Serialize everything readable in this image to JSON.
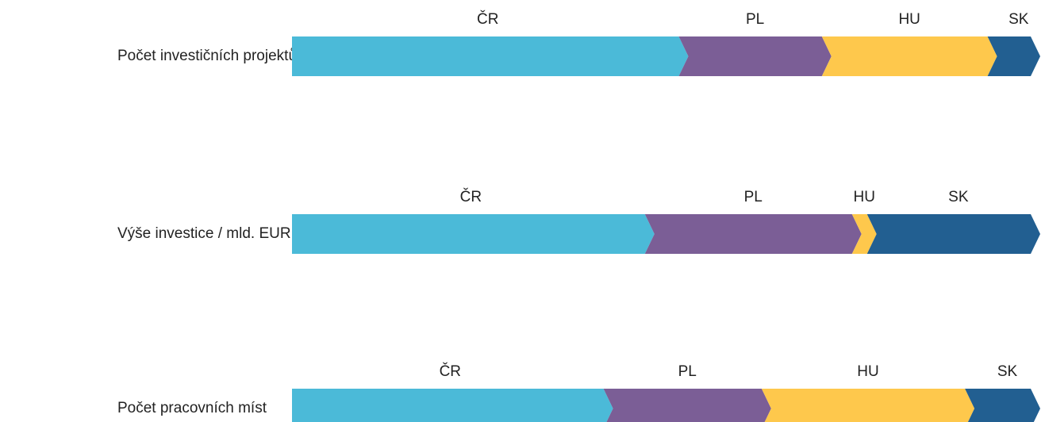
{
  "chart_data": {
    "type": "bar",
    "stacked": true,
    "orientation": "horizontal",
    "categories": [
      "Počet investičních projektů",
      "Výše investice / mld. EUR",
      "Počet pracovních míst"
    ],
    "series": [
      {
        "name": "ČR",
        "color": "#4bbad8",
        "values": [
          52,
          47.5,
          42
        ]
      },
      {
        "name": "PL",
        "color": "#7b5e96",
        "values": [
          19,
          27.5,
          21
        ]
      },
      {
        "name": "HU",
        "color": "#fec84c",
        "values": [
          22,
          2,
          27
        ]
      },
      {
        "name": "SK",
        "color": "#225f91",
        "values": [
          7,
          23,
          10
        ]
      }
    ]
  }
}
